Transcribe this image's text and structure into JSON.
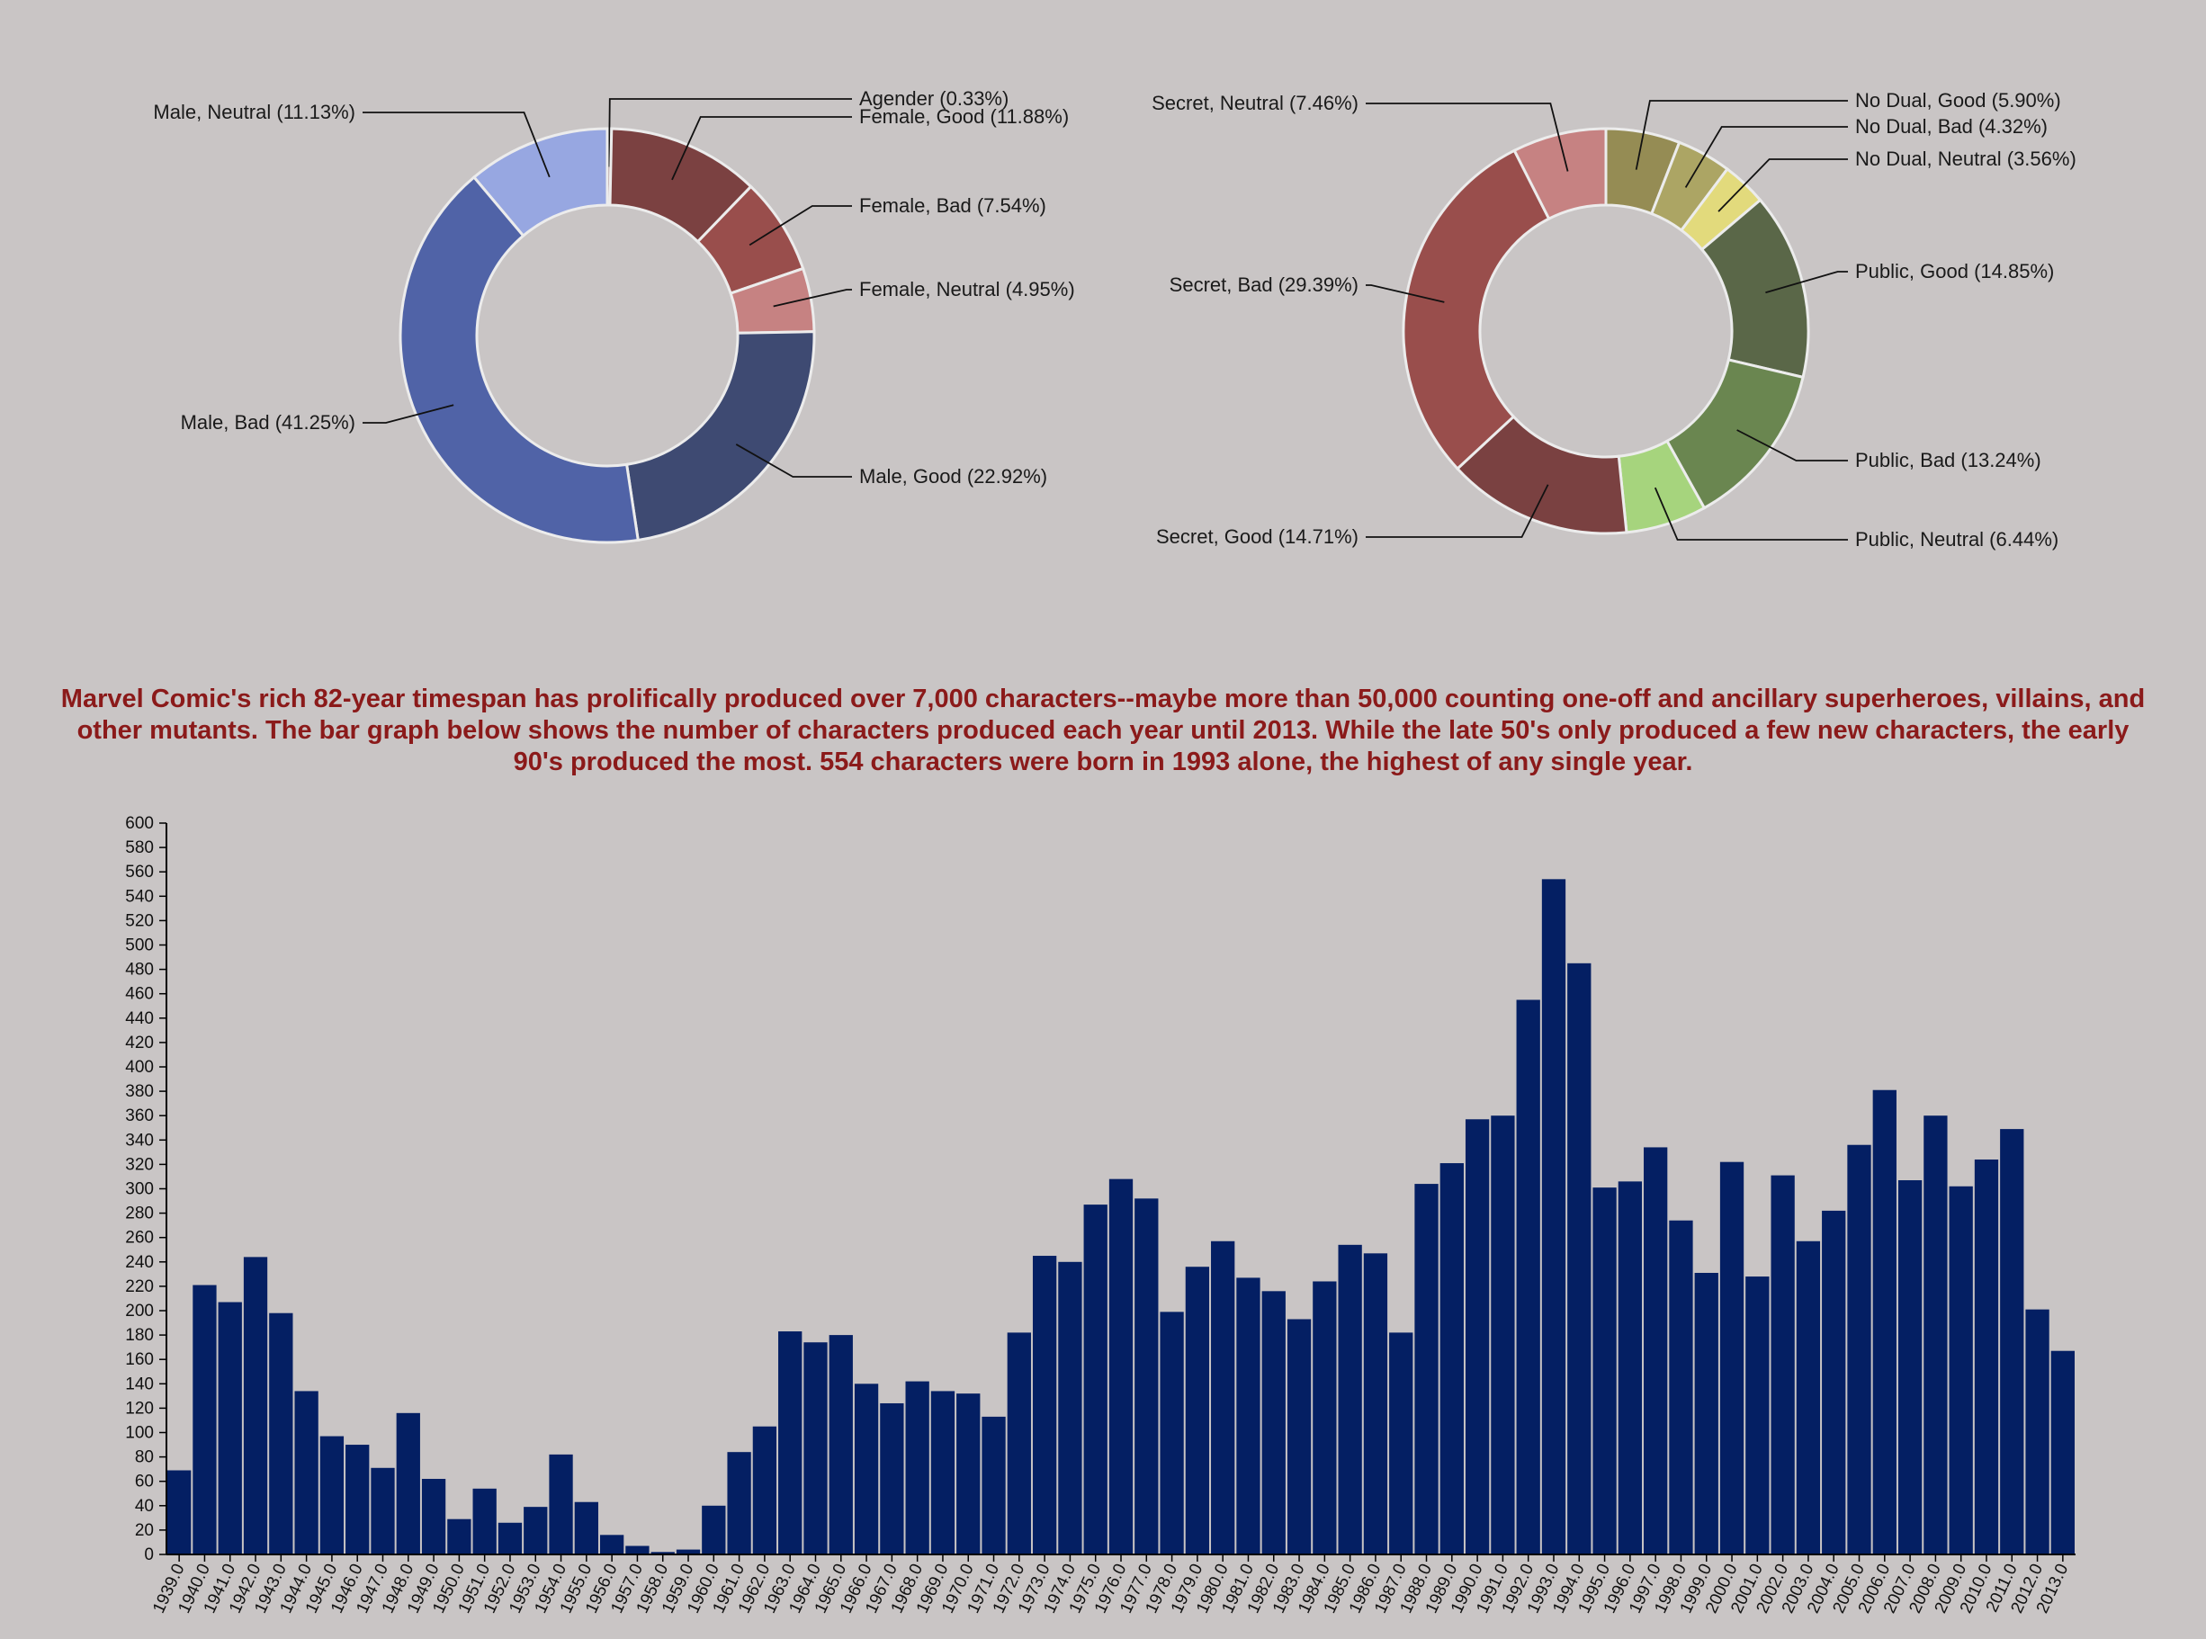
{
  "description": "Marvel Comic's rich 82-year timespan has prolifically produced over 7,000 characters--maybe more than 50,000 counting one-off and ancillary superheroes, villains, and other mutants. The bar graph below shows the number of characters produced each year until 2013. While the late 50's only produced a few new characters, the early 90's produced the most. 554 characters were born in 1993 alone, the highest of any single year.",
  "colors": {
    "bar": "#041f63",
    "background": "#c9c5c5",
    "description": "#8b1a1a"
  },
  "chart_data": [
    {
      "type": "pie",
      "subtype": "donut",
      "slices": [
        {
          "label": "Agender (0.33%)",
          "value": 0.33,
          "color": "#a78a8a"
        },
        {
          "label": "Female, Good (11.88%)",
          "value": 11.88,
          "color": "#7b4141"
        },
        {
          "label": "Female, Bad (7.54%)",
          "value": 7.54,
          "color": "#994e4c"
        },
        {
          "label": "Female, Neutral (4.95%)",
          "value": 4.95,
          "color": "#c68282"
        },
        {
          "label": "Male, Good (22.92%)",
          "value": 22.92,
          "color": "#3e4a72"
        },
        {
          "label": "Male, Bad (41.25%)",
          "value": 41.25,
          "color": "#5063a7"
        },
        {
          "label": "Male, Neutral (11.13%)",
          "value": 11.13,
          "color": "#97a7e1"
        }
      ]
    },
    {
      "type": "pie",
      "subtype": "donut",
      "slices": [
        {
          "label": "No Dual, Good (5.90%)",
          "value": 5.9,
          "color": "#958c54"
        },
        {
          "label": "No Dual, Bad (4.32%)",
          "value": 4.32,
          "color": "#aca564"
        },
        {
          "label": "No Dual, Neutral (3.56%)",
          "value": 3.56,
          "color": "#e2da7c"
        },
        {
          "label": "Public, Good (14.85%)",
          "value": 14.85,
          "color": "#5a6748"
        },
        {
          "label": "Public, Bad (13.24%)",
          "value": 13.24,
          "color": "#6a8650"
        },
        {
          "label": "Public, Neutral (6.44%)",
          "value": 6.44,
          "color": "#a6d47d"
        },
        {
          "label": "Secret, Good (14.71%)",
          "value": 14.71,
          "color": "#7a4141"
        },
        {
          "label": "Secret, Bad (29.39%)",
          "value": 29.39,
          "color": "#994e4c"
        },
        {
          "label": "Secret, Neutral (7.46%)",
          "value": 7.46,
          "color": "#c68282"
        }
      ]
    },
    {
      "type": "bar",
      "ylim": [
        0,
        600
      ],
      "yticks": [
        0,
        20,
        40,
        60,
        80,
        100,
        120,
        140,
        160,
        180,
        200,
        220,
        240,
        260,
        280,
        300,
        320,
        340,
        360,
        380,
        400,
        420,
        440,
        460,
        480,
        500,
        520,
        540,
        560,
        580,
        600
      ],
      "categories": [
        "1939.0",
        "1940.0",
        "1941.0",
        "1942.0",
        "1943.0",
        "1944.0",
        "1945.0",
        "1946.0",
        "1947.0",
        "1948.0",
        "1949.0",
        "1950.0",
        "1951.0",
        "1952.0",
        "1953.0",
        "1954.0",
        "1955.0",
        "1956.0",
        "1957.0",
        "1958.0",
        "1959.0",
        "1960.0",
        "1961.0",
        "1962.0",
        "1963.0",
        "1964.0",
        "1965.0",
        "1966.0",
        "1967.0",
        "1968.0",
        "1969.0",
        "1970.0",
        "1971.0",
        "1972.0",
        "1973.0",
        "1974.0",
        "1975.0",
        "1976.0",
        "1977.0",
        "1978.0",
        "1979.0",
        "1980.0",
        "1981.0",
        "1982.0",
        "1983.0",
        "1984.0",
        "1985.0",
        "1986.0",
        "1987.0",
        "1988.0",
        "1989.0",
        "1990.0",
        "1991.0",
        "1992.0",
        "1993.0",
        "1994.0",
        "1995.0",
        "1996.0",
        "1997.0",
        "1998.0",
        "1999.0",
        "2000.0",
        "2001.0",
        "2002.0",
        "2003.0",
        "2004.0",
        "2005.0",
        "2006.0",
        "2007.0",
        "2008.0",
        "2009.0",
        "2010.0",
        "2011.0",
        "2012.0",
        "2013.0"
      ],
      "values": [
        69,
        221,
        207,
        244,
        198,
        134,
        97,
        90,
        71,
        116,
        62,
        29,
        54,
        26,
        39,
        82,
        43,
        16,
        7,
        2,
        4,
        40,
        84,
        105,
        183,
        174,
        180,
        140,
        124,
        142,
        134,
        132,
        113,
        182,
        245,
        240,
        287,
        308,
        292,
        199,
        236,
        257,
        227,
        216,
        193,
        224,
        254,
        247,
        182,
        304,
        321,
        357,
        360,
        455,
        554,
        485,
        301,
        306,
        334,
        274,
        231,
        322,
        228,
        311,
        257,
        282,
        336,
        381,
        307,
        360,
        302,
        324,
        349,
        201,
        167
      ]
    }
  ]
}
